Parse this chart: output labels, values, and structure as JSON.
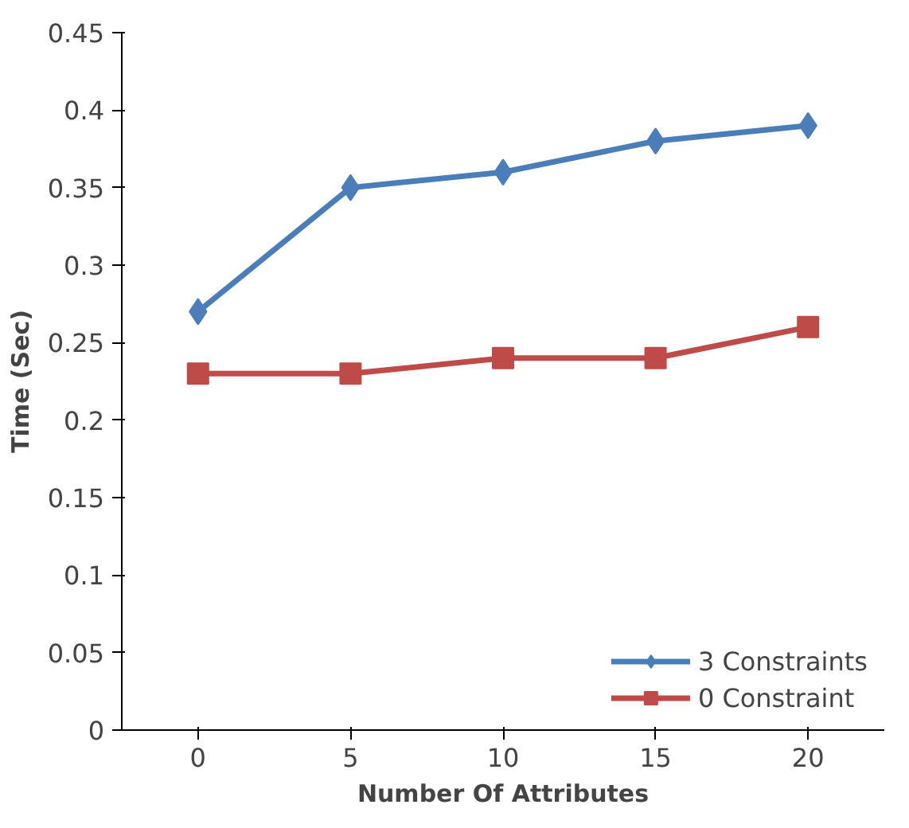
{
  "chart_data": {
    "type": "line",
    "xlabel": "Number Of Attributes",
    "ylabel": "Time (Sec)",
    "categories": [
      "0",
      "5",
      "10",
      "15",
      "20"
    ],
    "series": [
      {
        "name": "3 Constraints",
        "color": "#4a7ebb",
        "marker": "diamond",
        "values": [
          0.27,
          0.35,
          0.36,
          0.38,
          0.39
        ]
      },
      {
        "name": "0 Constraint",
        "color": "#be4b48",
        "marker": "square",
        "values": [
          0.23,
          0.23,
          0.24,
          0.24,
          0.26
        ]
      }
    ],
    "ylim": [
      0,
      0.45
    ],
    "yticks": [
      0,
      0.05,
      0.1,
      0.15,
      0.2,
      0.25,
      0.3,
      0.35,
      0.4,
      0.45
    ],
    "grid": false,
    "legend": "bottom right",
    "line_style": "solid"
  }
}
